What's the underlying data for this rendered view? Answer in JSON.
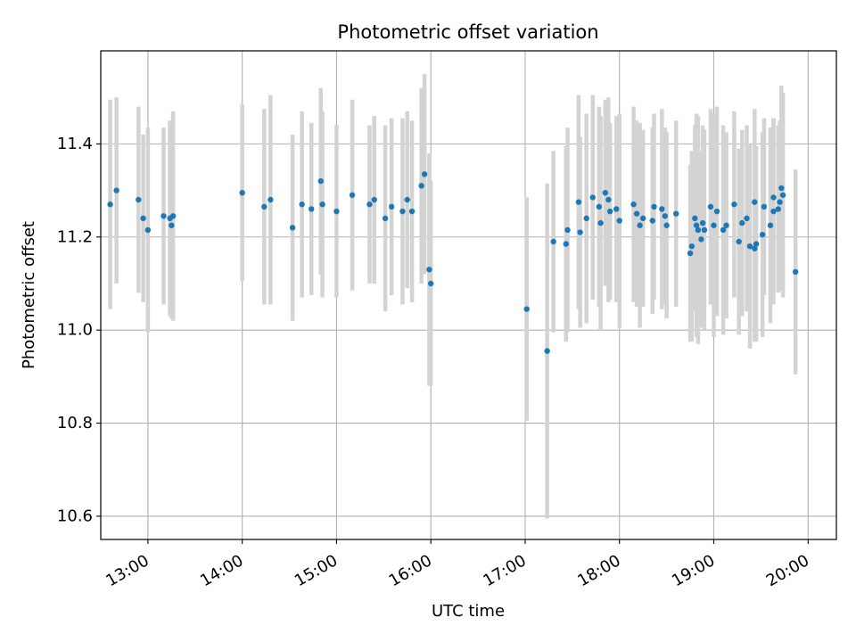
{
  "chart_data": {
    "type": "scatter",
    "title": "Photometric offset variation",
    "xlabel": "UTC time",
    "ylabel": "Photometric offset",
    "grid": true,
    "xlim": [
      "12:30",
      "20:18"
    ],
    "ylim": [
      10.55,
      11.6
    ],
    "x_ticks": [
      "13:00",
      "14:00",
      "15:00",
      "16:00",
      "17:00",
      "18:00",
      "19:00",
      "20:00"
    ],
    "y_ticks": [
      "10.6",
      "10.8",
      "11.0",
      "11.2",
      "11.4"
    ],
    "colors": {
      "points": "#1f77b4",
      "errorbars": "#d3d3d3",
      "grid": "#b0b0b0"
    },
    "series": [
      {
        "x": [
          "12:36",
          "12:40",
          "12:54",
          "12:57",
          "13:00",
          "13:10",
          "13:14",
          "13:15",
          "13:16",
          "14:00",
          "14:14",
          "14:18",
          "14:32",
          "14:38",
          "14:44",
          "14:50",
          "14:51",
          "15:00",
          "15:10",
          "15:21",
          "15:24",
          "15:31",
          "15:35",
          "15:42",
          "15:45",
          "15:48",
          "15:54",
          "15:56",
          "15:59",
          "16:00",
          "17:01",
          "17:14",
          "17:18",
          "17:26",
          "17:27",
          "17:34",
          "17:35",
          "17:39",
          "17:43",
          "17:47",
          "17:48",
          "17:51",
          "17:53",
          "17:54",
          "17:58",
          "18:00",
          "18:09",
          "18:11",
          "18:13",
          "18:15",
          "18:21",
          "18:22",
          "18:27",
          "18:29",
          "18:30",
          "18:36",
          "18:45",
          "18:46",
          "18:48",
          "18:49",
          "18:50",
          "18:52",
          "18:53",
          "18:54",
          "18:58",
          "19:00",
          "19:02",
          "19:06",
          "19:08",
          "19:13",
          "19:16",
          "19:18",
          "19:21",
          "19:23",
          "19:26",
          "19:26",
          "19:27",
          "19:31",
          "19:32",
          "19:36",
          "19:38",
          "19:38",
          "19:41",
          "19:42",
          "19:43",
          "19:44",
          "19:52"
        ],
        "y": [
          11.27,
          11.3,
          11.28,
          11.24,
          11.215,
          11.245,
          11.24,
          11.225,
          11.245,
          11.295,
          11.265,
          11.28,
          11.22,
          11.27,
          11.26,
          11.32,
          11.27,
          11.255,
          11.29,
          11.27,
          11.28,
          11.24,
          11.265,
          11.255,
          11.28,
          11.255,
          11.31,
          11.335,
          11.13,
          11.1,
          11.045,
          10.955,
          11.19,
          11.185,
          11.215,
          11.275,
          11.21,
          11.24,
          11.285,
          11.265,
          11.23,
          11.295,
          11.28,
          11.255,
          11.26,
          11.235,
          11.27,
          11.25,
          11.225,
          11.24,
          11.235,
          11.265,
          11.26,
          11.245,
          11.225,
          11.25,
          11.165,
          11.18,
          11.24,
          11.225,
          11.215,
          11.195,
          11.23,
          11.215,
          11.265,
          11.225,
          11.255,
          11.215,
          11.225,
          11.27,
          11.19,
          11.23,
          11.24,
          11.18,
          11.275,
          11.175,
          11.185,
          11.205,
          11.265,
          11.225,
          11.255,
          11.285,
          11.26,
          11.275,
          11.305,
          11.29,
          11.125
        ],
        "err": [
          0.225,
          0.2,
          0.2,
          0.18,
          0.22,
          0.19,
          0.21,
          0.2,
          0.225,
          0.19,
          0.21,
          0.225,
          0.2,
          0.2,
          0.185,
          0.2,
          0.2,
          0.185,
          0.205,
          0.17,
          0.18,
          0.2,
          0.19,
          0.2,
          0.19,
          0.195,
          0.21,
          0.215,
          0.25,
          0.22,
          0.24,
          0.36,
          0.195,
          0.21,
          0.22,
          0.23,
          0.205,
          0.225,
          0.22,
          0.215,
          0.23,
          0.2,
          0.22,
          0.19,
          0.2,
          0.23,
          0.21,
          0.2,
          0.22,
          0.19,
          0.2,
          0.2,
          0.215,
          0.19,
          0.2,
          0.2,
          0.19,
          0.205,
          0.2,
          0.24,
          0.245,
          0.19,
          0.21,
          0.215,
          0.21,
          0.24,
          0.225,
          0.225,
          0.2,
          0.2,
          0.2,
          0.2,
          0.2,
          0.22,
          0.2,
          0.2,
          0.21,
          0.22,
          0.19,
          0.21,
          0.2,
          0.17,
          0.18,
          0.175,
          0.22,
          0.22,
          0.22
        ]
      }
    ]
  }
}
